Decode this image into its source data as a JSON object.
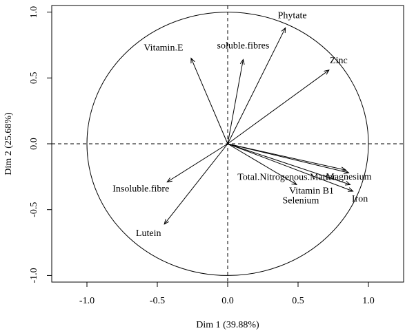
{
  "chart_data": {
    "type": "scatter",
    "subtype": "pca-correlation-circle",
    "xlabel": "Dim 1 (39.88%)",
    "ylabel": "Dim 2 (25.68%)",
    "xlim": [
      -1.25,
      1.25
    ],
    "ylim": [
      -1.05,
      1.05
    ],
    "xticks": [
      -1.0,
      -0.5,
      0.0,
      0.5,
      1.0
    ],
    "xtick_labels": [
      "-1.0",
      "-0.5",
      "0.0",
      "0.5",
      "1.0"
    ],
    "yticks": [
      -1.0,
      -0.5,
      0.0,
      0.5,
      1.0
    ],
    "ytick_labels": [
      "-1.0",
      "-0.5",
      "0.0",
      "0.5",
      "1.0"
    ],
    "grid": false,
    "reference_lines": {
      "x": 0,
      "y": 0,
      "style": "dashed"
    },
    "unit_circle": true,
    "variables": [
      {
        "name": "Phytate",
        "x": 0.41,
        "y": 0.88
      },
      {
        "name": "Vitamin.E",
        "x": -0.26,
        "y": 0.65
      },
      {
        "name": "soluble.fibres",
        "x": 0.11,
        "y": 0.64
      },
      {
        "name": "Zinc",
        "x": 0.72,
        "y": 0.56
      },
      {
        "name": "Total.Nitrogenous.Matter",
        "x": 0.84,
        "y": -0.2
      },
      {
        "name": "Magnesium",
        "x": 0.86,
        "y": -0.22
      },
      {
        "name": "Vitamin B1",
        "x": 0.87,
        "y": -0.31
      },
      {
        "name": "Iron",
        "x": 0.89,
        "y": -0.36
      },
      {
        "name": "Selenium",
        "x": 0.49,
        "y": -0.31
      },
      {
        "name": "Insoluble.fibre",
        "x": -0.43,
        "y": -0.29
      },
      {
        "name": "Lutein",
        "x": -0.45,
        "y": -0.61
      }
    ],
    "colors": {
      "arrow": "#000000",
      "circle": "#000000",
      "axes": "#000000"
    }
  }
}
